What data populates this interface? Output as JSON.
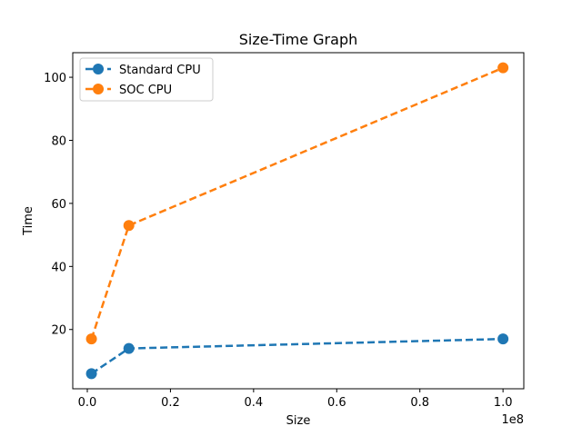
{
  "chart_data": {
    "type": "line",
    "title": "Size-Time Graph",
    "xlabel": "Size",
    "ylabel": "Time",
    "x_scale_label": "1e8",
    "xlim": [
      -3500000,
      105000000
    ],
    "ylim": [
      1.2,
      107.8
    ],
    "x_ticks": [
      0,
      20000000,
      40000000,
      60000000,
      80000000,
      100000000
    ],
    "x_tick_labels": [
      "0.0",
      "0.2",
      "0.4",
      "0.6",
      "0.8",
      "1.0"
    ],
    "y_ticks": [
      20,
      40,
      60,
      80,
      100
    ],
    "y_tick_labels": [
      "20",
      "40",
      "60",
      "80",
      "100"
    ],
    "grid": false,
    "legend_position": "top-left",
    "series": [
      {
        "name": "Standard CPU",
        "color": "#1f77b4",
        "x": [
          1000000,
          10000000,
          100000000
        ],
        "y": [
          6,
          14,
          17
        ]
      },
      {
        "name": "SOC CPU",
        "color": "#ff7f0e",
        "x": [
          1000000,
          10000000,
          100000000
        ],
        "y": [
          17,
          53,
          103
        ]
      }
    ]
  }
}
